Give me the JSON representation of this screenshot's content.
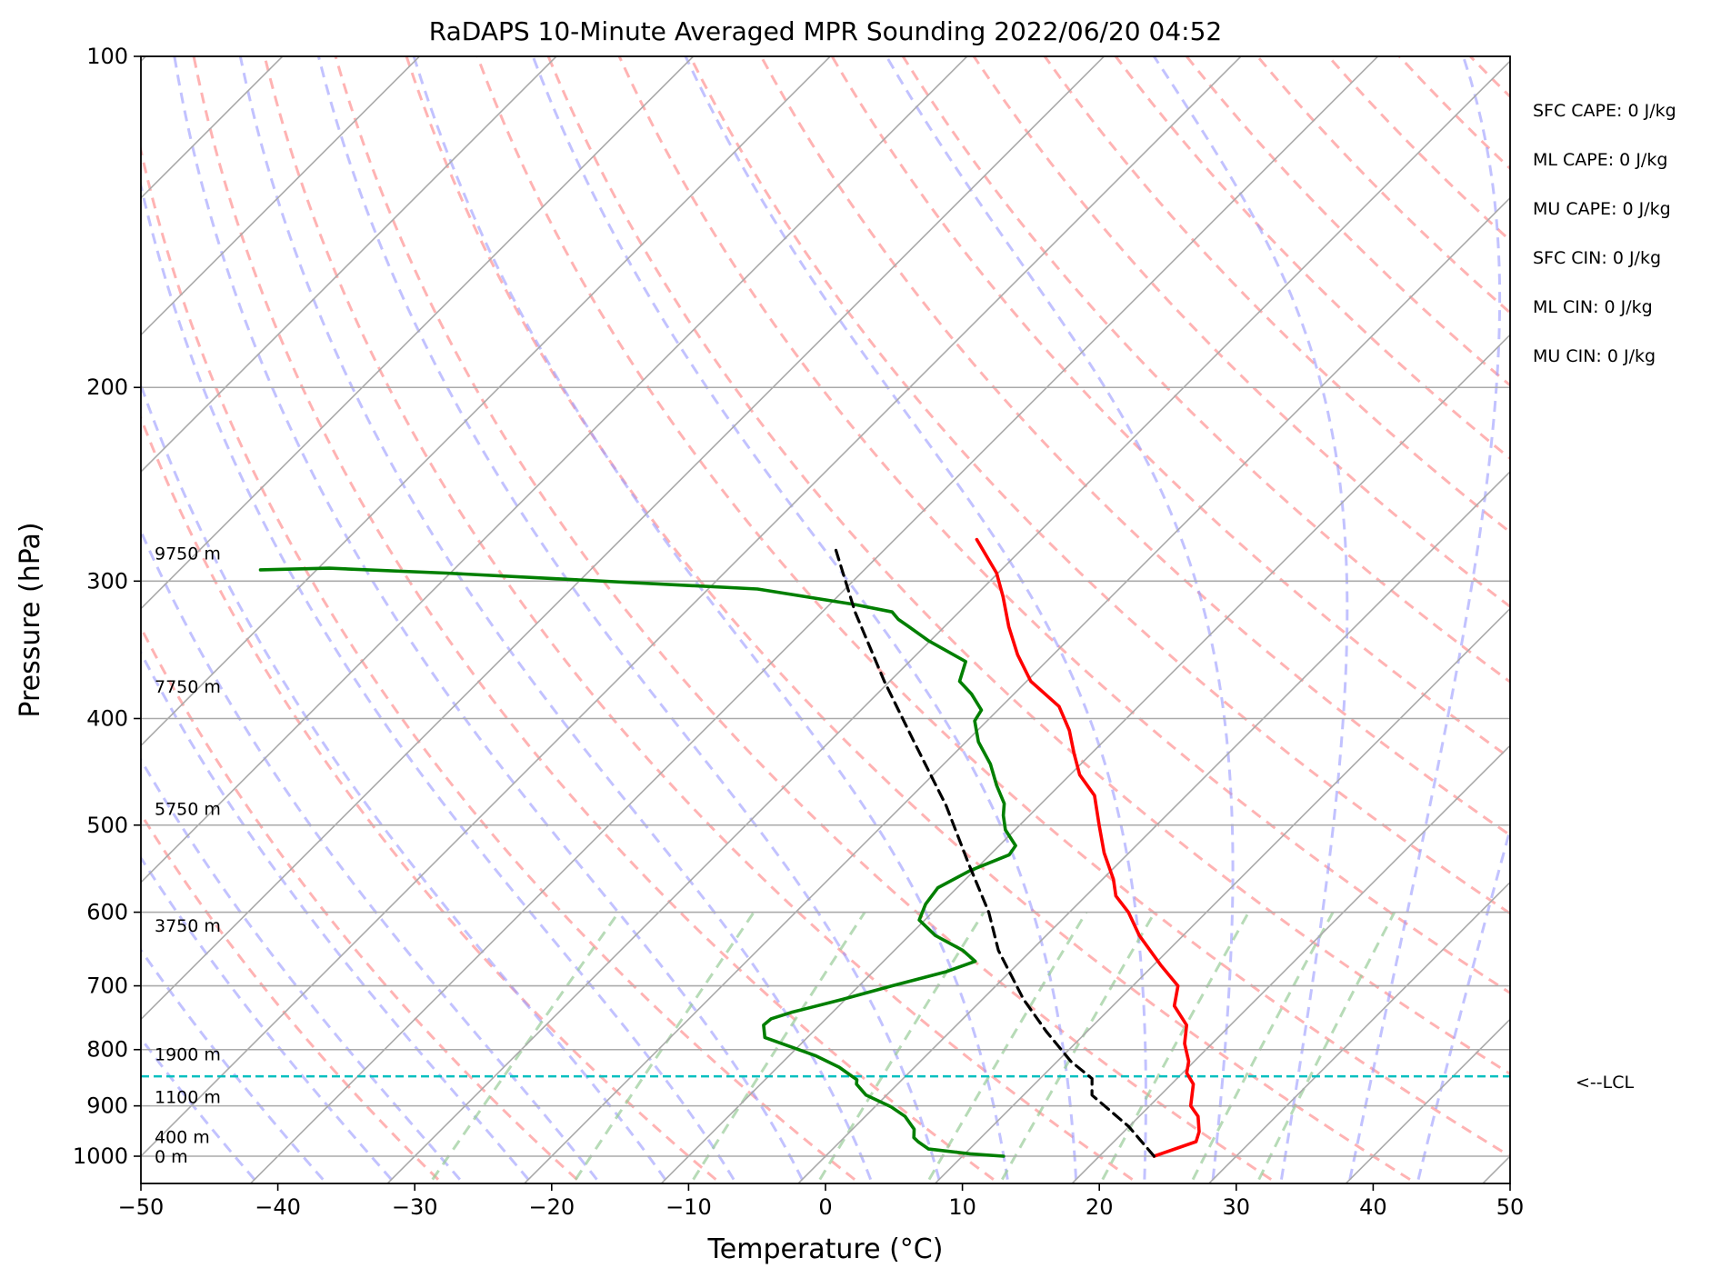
{
  "chart_data": {
    "type": "line",
    "title": "RaDAPS 10-Minute Averaged MPR Sounding 2022/06/20 04:52",
    "xlabel": "Temperature (°C)",
    "ylabel": "Pressure (hPa)",
    "xlim": [
      -50,
      50
    ],
    "ylim": [
      1050,
      100
    ],
    "y_scale": "log",
    "skew": "skew-T log-P",
    "grid": true,
    "x_ticks": [
      -50,
      -40,
      -30,
      -20,
      -10,
      0,
      10,
      20,
      30,
      40,
      50
    ],
    "x_tick_labels": [
      "−50",
      "−40",
      "−30",
      "−20",
      "−10",
      "0",
      "10",
      "20",
      "30",
      "40",
      "50"
    ],
    "y_ticks": [
      100,
      200,
      300,
      400,
      500,
      600,
      700,
      800,
      900,
      1000
    ],
    "y_tick_labels": [
      "100",
      "200",
      "300",
      "400",
      "500",
      "600",
      "700",
      "800",
      "900",
      "1000"
    ],
    "series": [
      {
        "color": "#ff0000",
        "style": "solid",
        "points": [
          [
            24.0,
            1000
          ],
          [
            26.0,
            970
          ],
          [
            25.5,
            950
          ],
          [
            24.3,
            920
          ],
          [
            23.0,
            900
          ],
          [
            21.6,
            860
          ],
          [
            20.3,
            840
          ],
          [
            19.6,
            820
          ],
          [
            18.0,
            790
          ],
          [
            16.8,
            760
          ],
          [
            14.5,
            730
          ],
          [
            13.3,
            700
          ],
          [
            10.5,
            670
          ],
          [
            6.8,
            630
          ],
          [
            4.3,
            600
          ],
          [
            2.2,
            580
          ],
          [
            0.8,
            560
          ],
          [
            -1.8,
            530
          ],
          [
            -4.2,
            500
          ],
          [
            -6.7,
            470
          ],
          [
            -9.3,
            450
          ],
          [
            -11.3,
            430
          ],
          [
            -13.3,
            410
          ],
          [
            -15.8,
            390
          ],
          [
            -19.7,
            370
          ],
          [
            -22.6,
            350
          ],
          [
            -25.3,
            330
          ],
          [
            -27.9,
            310
          ],
          [
            -30.1,
            295
          ],
          [
            -34.0,
            275
          ]
        ]
      },
      {
        "color": "#007f00",
        "style": "solid",
        "points": [
          [
            13.0,
            1000
          ],
          [
            10.4,
            995
          ],
          [
            7.0,
            985
          ],
          [
            5.7,
            970
          ],
          [
            5.1,
            962
          ],
          [
            4.5,
            945
          ],
          [
            2.9,
            920
          ],
          [
            1.2,
            902
          ],
          [
            -1.5,
            880
          ],
          [
            -3.0,
            860
          ],
          [
            -3.3,
            852
          ],
          [
            -4.0,
            845
          ],
          [
            -5.5,
            830
          ],
          [
            -8.1,
            810
          ],
          [
            -13.1,
            780
          ],
          [
            -14.1,
            760
          ],
          [
            -14.0,
            750
          ],
          [
            -13.0,
            740
          ],
          [
            -10.2,
            720
          ],
          [
            -7.6,
            700
          ],
          [
            -4.7,
            680
          ],
          [
            -3.3,
            665
          ],
          [
            -5.0,
            650
          ],
          [
            -8.1,
            630
          ],
          [
            -10.4,
            610
          ],
          [
            -11.1,
            590
          ],
          [
            -11.4,
            570
          ],
          [
            -10.3,
            550
          ],
          [
            -8.6,
            532
          ],
          [
            -8.8,
            522
          ],
          [
            -10.7,
            505
          ],
          [
            -11.9,
            490
          ],
          [
            -12.7,
            478
          ],
          [
            -14.6,
            460
          ],
          [
            -16.6,
            440
          ],
          [
            -19.1,
            420
          ],
          [
            -20.9,
            402
          ],
          [
            -21.2,
            393
          ],
          [
            -23.1,
            380
          ],
          [
            -24.9,
            370
          ],
          [
            -25.9,
            355
          ],
          [
            -30.1,
            340
          ],
          [
            -32.6,
            330
          ],
          [
            -33.9,
            325
          ],
          [
            -34.9,
            320
          ],
          [
            -38.2,
            315
          ],
          [
            -46.4,
            305
          ],
          [
            -70.3,
            295
          ],
          [
            -79.2,
            292
          ],
          [
            -84.1,
            293
          ]
        ]
      },
      {
        "color": "#000000",
        "style": "dashed",
        "points": [
          [
            24.0,
            1000
          ],
          [
            20.0,
            940
          ],
          [
            15.0,
            880
          ],
          [
            13.8,
            850
          ],
          [
            11.0,
            820
          ],
          [
            7.0,
            770
          ],
          [
            3.0,
            720
          ],
          [
            -2.4,
            650
          ],
          [
            -5.9,
            600
          ],
          [
            -11.1,
            540
          ],
          [
            -16.8,
            480
          ],
          [
            -23.8,
            420
          ],
          [
            -30.4,
            370
          ],
          [
            -37.6,
            320
          ],
          [
            -43.7,
            280
          ]
        ]
      }
    ],
    "annotations": {
      "lcl_label": "<--LCL",
      "lcl_pressure": 846,
      "height_labels": [
        {
          "text": "9750 m",
          "pressure": 283
        },
        {
          "text": "7750 m",
          "pressure": 374
        },
        {
          "text": "5750 m",
          "pressure": 483
        },
        {
          "text": "3750 m",
          "pressure": 617
        },
        {
          "text": "1900 m",
          "pressure": 807
        },
        {
          "text": "1100 m",
          "pressure": 883
        },
        {
          "text": "400 m",
          "pressure": 960
        },
        {
          "text": "0 m",
          "pressure": 1000
        }
      ],
      "stats": [
        "SFC CAPE: 0 J/kg",
        "ML CAPE: 0 J/kg",
        "MU CAPE: 0 J/kg",
        "SFC CIN: 0 J/kg",
        "ML CIN: 0 J/kg",
        "MU CIN: 0 J/kg"
      ]
    },
    "background_lines": {
      "isotherms_color": "#aaaaaa",
      "isobars_color": "#aaaaaa",
      "dry_adiabats_color": "#ff9999",
      "moist_adiabats_color": "#9999ff",
      "mixing_ratio_color": "#99cc99",
      "lcl_line_color": "#00bfbf"
    }
  }
}
